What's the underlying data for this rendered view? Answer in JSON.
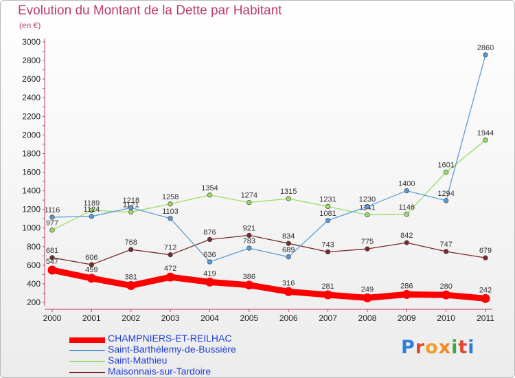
{
  "title": "Evolution du Montant de la Dette par Habitant",
  "subtitle": "(en €)",
  "brand": "Proxiti",
  "chart_data": {
    "type": "line",
    "title": "Evolution du Montant de la Dette par Habitant",
    "unit": "(en €)",
    "x": [
      "2000",
      "2001",
      "2002",
      "2003",
      "2004",
      "2005",
      "2006",
      "2007",
      "2008",
      "2009",
      "2010",
      "2011"
    ],
    "y_ticks": [
      "200",
      "400",
      "600",
      "800",
      "1000",
      "1200",
      "1400",
      "1600",
      "1800",
      "2000",
      "2200",
      "2400",
      "2600",
      "2800",
      "3000"
    ],
    "ylim": [
      200,
      3000
    ],
    "grid": false,
    "legend_position": "bottom-left",
    "series": [
      {
        "name": "CHAMPNIERS-ET-REILHAC",
        "color": "#ff0000",
        "values": [
          547,
          459,
          381,
          472,
          419,
          386,
          316,
          281,
          249,
          286,
          280,
          242
        ],
        "labels": [
          "547",
          "459",
          "381",
          "472",
          "419",
          "386",
          "316",
          "281",
          "249",
          "286",
          "280",
          "242"
        ]
      },
      {
        "name": "Saint-Barthélemy-de-Bussière",
        "color": "#5b9bd5",
        "values": [
          1116,
          1124,
          1218,
          1103,
          636,
          783,
          689,
          1081,
          1230,
          1400,
          1294,
          2860
        ],
        "labels": [
          "1116",
          "1124",
          "1218",
          "1103",
          "636",
          "783",
          "689",
          "1081",
          "1230",
          "1400",
          "1294",
          "2860"
        ]
      },
      {
        "name": "Saint-Mathieu",
        "color": "#99dd66",
        "values": [
          977,
          1189,
          1171,
          1258,
          1354,
          1274,
          1315,
          1231,
          1141,
          1146,
          1601,
          1944
        ],
        "labels": [
          "977",
          "1189",
          "1171",
          "1258",
          "1354",
          "1274",
          "1315",
          "1231",
          "1141",
          "1146",
          "1601",
          "1944"
        ]
      },
      {
        "name": "Maisonnais-sur-Tardoire",
        "color": "#7a2a2a",
        "values": [
          681,
          606,
          768,
          712,
          876,
          921,
          834,
          743,
          775,
          842,
          747,
          679
        ],
        "labels": [
          "681",
          "606",
          "768",
          "712",
          "876",
          "921",
          "834",
          "743",
          "775",
          "842",
          "747",
          "679"
        ]
      }
    ]
  }
}
